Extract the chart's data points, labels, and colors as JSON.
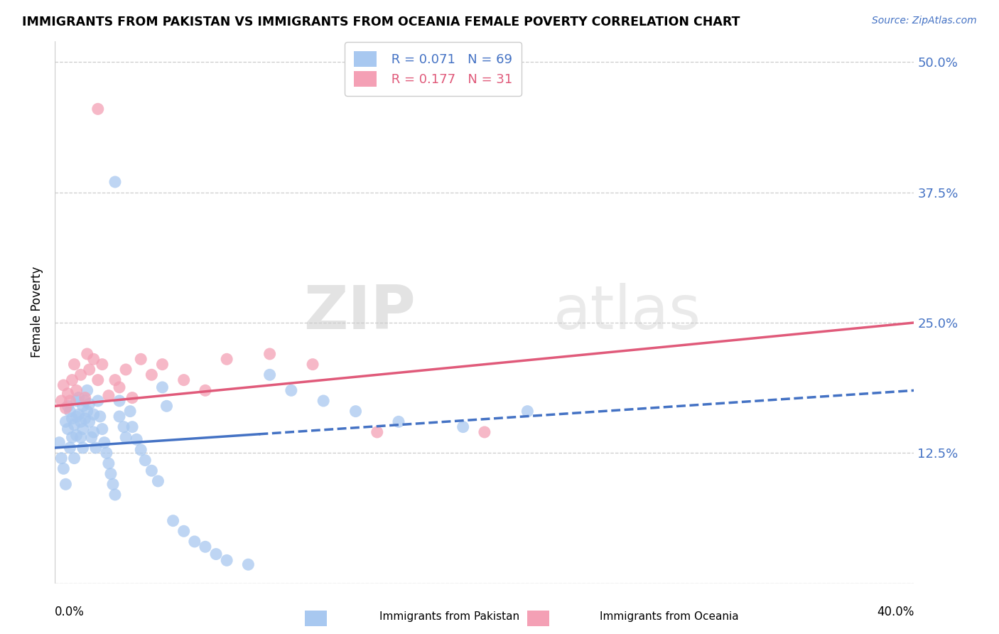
{
  "title": "IMMIGRANTS FROM PAKISTAN VS IMMIGRANTS FROM OCEANIA FEMALE POVERTY CORRELATION CHART",
  "source": "Source: ZipAtlas.com",
  "ylabel": "Female Poverty",
  "yticks": [
    0.0,
    0.125,
    0.25,
    0.375,
    0.5
  ],
  "ytick_labels": [
    "",
    "12.5%",
    "25.0%",
    "37.5%",
    "50.0%"
  ],
  "xlim": [
    0.0,
    0.4
  ],
  "ylim": [
    0.0,
    0.52
  ],
  "watermark": "ZIPatlas",
  "legend_r1": "R = 0.071",
  "legend_n1": "N = 69",
  "legend_r2": "R = 0.177",
  "legend_n2": "N = 31",
  "color_pakistan": "#A8C8F0",
  "color_oceania": "#F4A0B5",
  "trendline_pakistan_color": "#4472C4",
  "trendline_oceania_color": "#E05A7A",
  "pakistan_x": [
    0.002,
    0.003,
    0.004,
    0.005,
    0.005,
    0.006,
    0.006,
    0.007,
    0.007,
    0.008,
    0.008,
    0.009,
    0.009,
    0.01,
    0.01,
    0.01,
    0.011,
    0.011,
    0.012,
    0.012,
    0.013,
    0.013,
    0.013,
    0.014,
    0.014,
    0.015,
    0.015,
    0.016,
    0.016,
    0.017,
    0.018,
    0.018,
    0.019,
    0.02,
    0.021,
    0.022,
    0.023,
    0.024,
    0.025,
    0.026,
    0.027,
    0.028,
    0.03,
    0.03,
    0.032,
    0.033,
    0.035,
    0.036,
    0.038,
    0.04,
    0.042,
    0.045,
    0.048,
    0.05,
    0.052,
    0.055,
    0.06,
    0.065,
    0.07,
    0.075,
    0.08,
    0.09,
    0.1,
    0.11,
    0.125,
    0.14,
    0.16,
    0.19,
    0.22
  ],
  "pakistan_y": [
    0.135,
    0.12,
    0.11,
    0.155,
    0.095,
    0.17,
    0.148,
    0.165,
    0.13,
    0.158,
    0.14,
    0.152,
    0.12,
    0.175,
    0.16,
    0.142,
    0.178,
    0.162,
    0.155,
    0.14,
    0.17,
    0.148,
    0.13,
    0.175,
    0.158,
    0.185,
    0.165,
    0.172,
    0.155,
    0.14,
    0.162,
    0.145,
    0.13,
    0.175,
    0.16,
    0.148,
    0.135,
    0.125,
    0.115,
    0.105,
    0.095,
    0.085,
    0.175,
    0.16,
    0.15,
    0.14,
    0.165,
    0.15,
    0.138,
    0.128,
    0.118,
    0.108,
    0.098,
    0.188,
    0.17,
    0.06,
    0.05,
    0.04,
    0.035,
    0.028,
    0.022,
    0.018,
    0.2,
    0.185,
    0.175,
    0.165,
    0.155,
    0.15,
    0.165
  ],
  "pakistan_outlier_x": [
    0.028
  ],
  "pakistan_outlier_y": [
    0.385
  ],
  "oceania_x": [
    0.003,
    0.004,
    0.005,
    0.006,
    0.007,
    0.008,
    0.009,
    0.01,
    0.012,
    0.014,
    0.015,
    0.016,
    0.018,
    0.02,
    0.022,
    0.025,
    0.028,
    0.03,
    0.033,
    0.036,
    0.04,
    0.045,
    0.05,
    0.06,
    0.07,
    0.08,
    0.1,
    0.12,
    0.15,
    0.2
  ],
  "oceania_y": [
    0.175,
    0.19,
    0.168,
    0.182,
    0.175,
    0.195,
    0.21,
    0.185,
    0.2,
    0.178,
    0.22,
    0.205,
    0.215,
    0.195,
    0.21,
    0.18,
    0.195,
    0.188,
    0.205,
    0.178,
    0.215,
    0.2,
    0.21,
    0.195,
    0.185,
    0.215,
    0.22,
    0.21,
    0.145,
    0.145
  ],
  "oceania_outlier_x": [
    0.02
  ],
  "oceania_outlier_y": [
    0.455
  ],
  "trendline_pak_x0": 0.0,
  "trendline_pak_y0": 0.13,
  "trendline_pak_x1": 0.4,
  "trendline_pak_y1": 0.185,
  "trendline_pak_solid_end": 0.095,
  "trendline_oce_x0": 0.0,
  "trendline_oce_y0": 0.17,
  "trendline_oce_x1": 0.4,
  "trendline_oce_y1": 0.25
}
